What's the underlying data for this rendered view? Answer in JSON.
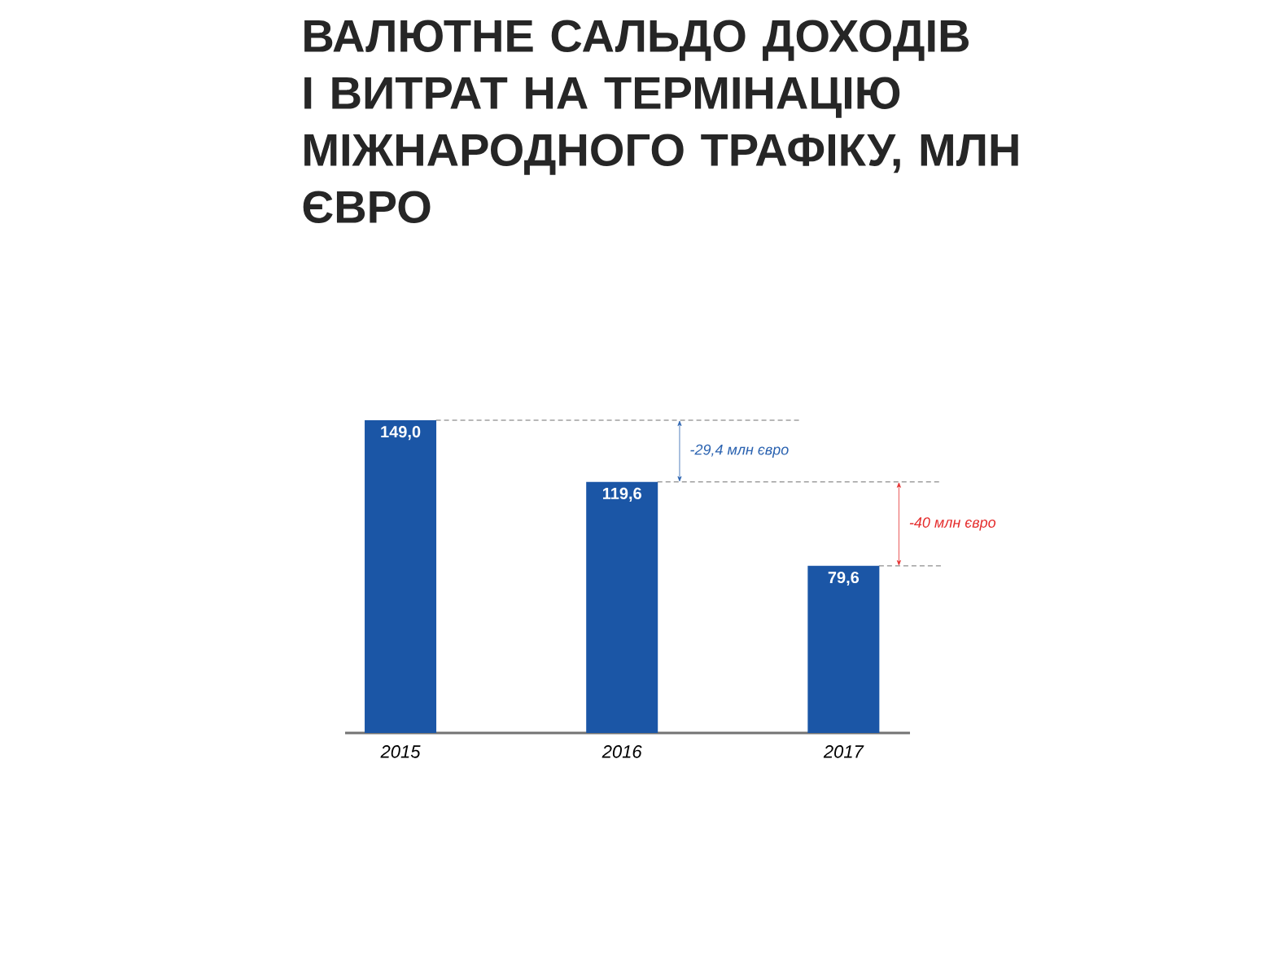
{
  "chart_data": {
    "type": "bar",
    "title": "ВАЛЮТНЕ САЛЬДО ДОХОДІВ І ВИТРАТ НА ТЕРМІНАЦІЮ МІЖНАРОДНОГО ТРАФІКУ, МЛН ЄВРО",
    "categories": [
      "2015",
      "2016",
      "2017"
    ],
    "values": [
      149.0,
      119.6,
      79.6
    ],
    "value_labels": [
      "149,0",
      "119,6",
      "79,6"
    ],
    "color": "#1b56a6",
    "annotations": [
      "-29,4 млн євро",
      "-40 млн євро"
    ]
  }
}
